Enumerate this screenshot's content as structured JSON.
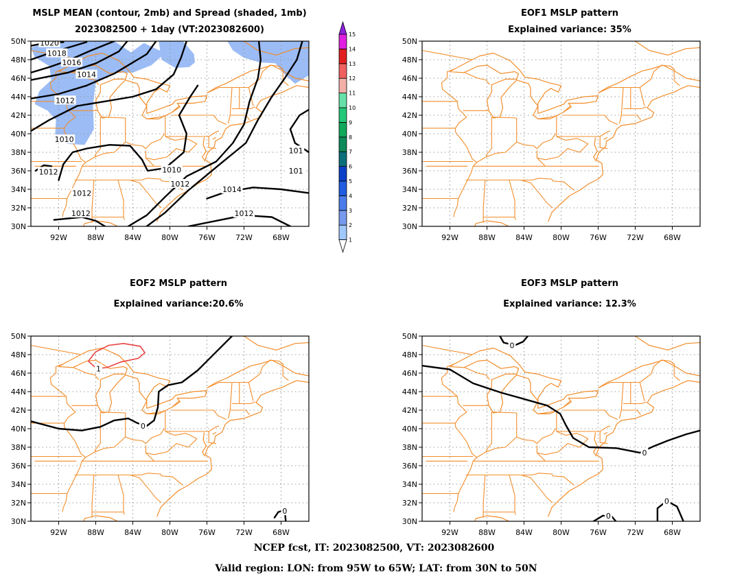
{
  "panels": [
    {
      "id": "p1",
      "title_line1": "MSLP MEAN (contour, 2mb) and Spread (shaded, 1mb)",
      "title_line2": "2023082500 + 1day (VT:2023082600)",
      "contour_labels": [
        "1020",
        "1018",
        "1016",
        "1014",
        "1012",
        "1010",
        "1012",
        "1012",
        "1012",
        "1010",
        "1012",
        "1014",
        "1012",
        "101",
        "101"
      ]
    },
    {
      "id": "p2",
      "title_line1": "EOF1 MSLP pattern",
      "title_line2": "Explained variance: 35%",
      "contour_labels": []
    },
    {
      "id": "p3",
      "title_line1": "EOF2 MSLP pattern",
      "title_line2": "Explained variance:20.6%",
      "contour_labels": [
        "0",
        "1",
        "0"
      ]
    },
    {
      "id": "p4",
      "title_line1": "EOF3 MSLP pattern",
      "title_line2": "Explained variance: 12.3%",
      "contour_labels": [
        "0",
        "0",
        "0",
        "0"
      ]
    }
  ],
  "lat_labels": [
    "30N",
    "32N",
    "34N",
    "36N",
    "38N",
    "40N",
    "42N",
    "44N",
    "46N",
    "48N",
    "50N"
  ],
  "lon_labels": [
    "92W",
    "88W",
    "84W",
    "80W",
    "76W",
    "72W",
    "68W"
  ],
  "colorbar": {
    "levels": [
      "1",
      "2",
      "3",
      "4",
      "5",
      "6",
      "7",
      "8",
      "9",
      "10",
      "11",
      "12",
      "13",
      "14",
      "15"
    ],
    "colors": [
      "#a0c8ff",
      "#7799ee",
      "#4a7bea",
      "#1f5ce0",
      "#0a40c8",
      "#0b6f7a",
      "#0d8a5a",
      "#10a85a",
      "#22c878",
      "#66e0a8",
      "#f3b0a8",
      "#f06060",
      "#e02020",
      "#e020e0",
      "#9020e0"
    ]
  },
  "colors": {
    "coast": "#f28c28",
    "contour": "#000000",
    "spread": "#9bbcf5",
    "positive_contour": "#e84040",
    "grid": "#9a9a9a"
  },
  "footer_line1": "NCEP fcst, IT: 2023082500, VT: 2023082600",
  "footer_line2": "Valid region: LON: from 95W to 65W; LAT: from 30N to 50N"
}
